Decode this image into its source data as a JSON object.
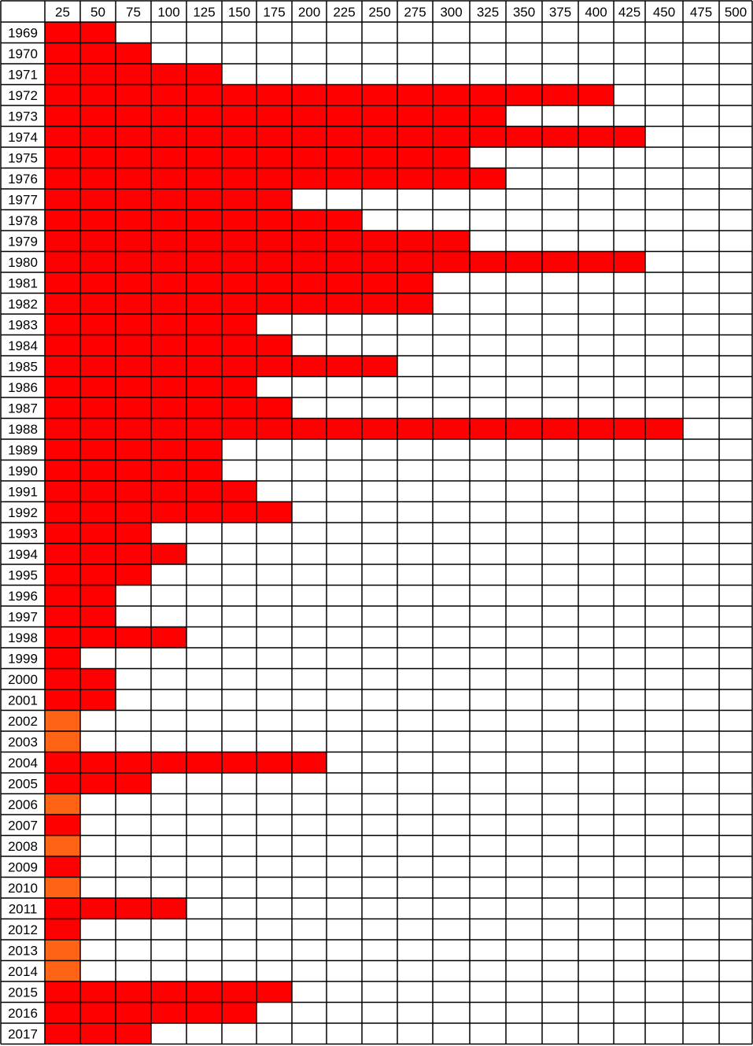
{
  "chart_data": {
    "type": "heatmap",
    "title": "",
    "xlabel": "",
    "ylabel": "",
    "columns": [
      "25",
      "50",
      "75",
      "100",
      "125",
      "150",
      "175",
      "200",
      "225",
      "250",
      "275",
      "300",
      "325",
      "350",
      "375",
      "400",
      "425",
      "450",
      "475",
      "500"
    ],
    "rows": [
      {
        "year": "1969",
        "filled": 2,
        "first_cell": "red"
      },
      {
        "year": "1970",
        "filled": 3,
        "first_cell": "red"
      },
      {
        "year": "1971",
        "filled": 5,
        "first_cell": "red"
      },
      {
        "year": "1972",
        "filled": 16,
        "first_cell": "red"
      },
      {
        "year": "1973",
        "filled": 13,
        "first_cell": "red"
      },
      {
        "year": "1974",
        "filled": 17,
        "first_cell": "red"
      },
      {
        "year": "1975",
        "filled": 12,
        "first_cell": "red"
      },
      {
        "year": "1976",
        "filled": 13,
        "first_cell": "red"
      },
      {
        "year": "1977",
        "filled": 7,
        "first_cell": "red"
      },
      {
        "year": "1978",
        "filled": 9,
        "first_cell": "red"
      },
      {
        "year": "1979",
        "filled": 12,
        "first_cell": "red"
      },
      {
        "year": "1980",
        "filled": 17,
        "first_cell": "red"
      },
      {
        "year": "1981",
        "filled": 11,
        "first_cell": "red"
      },
      {
        "year": "1982",
        "filled": 11,
        "first_cell": "red"
      },
      {
        "year": "1983",
        "filled": 6,
        "first_cell": "red"
      },
      {
        "year": "1984",
        "filled": 7,
        "first_cell": "red"
      },
      {
        "year": "1985",
        "filled": 10,
        "first_cell": "red"
      },
      {
        "year": "1986",
        "filled": 6,
        "first_cell": "red"
      },
      {
        "year": "1987",
        "filled": 7,
        "first_cell": "red"
      },
      {
        "year": "1988",
        "filled": 18,
        "first_cell": "red"
      },
      {
        "year": "1989",
        "filled": 5,
        "first_cell": "red"
      },
      {
        "year": "1990",
        "filled": 5,
        "first_cell": "red"
      },
      {
        "year": "1991",
        "filled": 6,
        "first_cell": "red"
      },
      {
        "year": "1992",
        "filled": 7,
        "first_cell": "red"
      },
      {
        "year": "1993",
        "filled": 3,
        "first_cell": "red"
      },
      {
        "year": "1994",
        "filled": 4,
        "first_cell": "red"
      },
      {
        "year": "1995",
        "filled": 3,
        "first_cell": "red"
      },
      {
        "year": "1996",
        "filled": 2,
        "first_cell": "red"
      },
      {
        "year": "1997",
        "filled": 2,
        "first_cell": "red"
      },
      {
        "year": "1998",
        "filled": 4,
        "first_cell": "red"
      },
      {
        "year": "1999",
        "filled": 1,
        "first_cell": "red"
      },
      {
        "year": "2000",
        "filled": 2,
        "first_cell": "red"
      },
      {
        "year": "2001",
        "filled": 2,
        "first_cell": "red"
      },
      {
        "year": "2002",
        "filled": 1,
        "first_cell": "orange"
      },
      {
        "year": "2003",
        "filled": 1,
        "first_cell": "orange"
      },
      {
        "year": "2004",
        "filled": 8,
        "first_cell": "red"
      },
      {
        "year": "2005",
        "filled": 3,
        "first_cell": "red"
      },
      {
        "year": "2006",
        "filled": 1,
        "first_cell": "orange"
      },
      {
        "year": "2007",
        "filled": 1,
        "first_cell": "red"
      },
      {
        "year": "2008",
        "filled": 1,
        "first_cell": "orange"
      },
      {
        "year": "2009",
        "filled": 1,
        "first_cell": "red"
      },
      {
        "year": "2010",
        "filled": 1,
        "first_cell": "orange"
      },
      {
        "year": "2011",
        "filled": 4,
        "first_cell": "red"
      },
      {
        "year": "2012",
        "filled": 1,
        "first_cell": "red"
      },
      {
        "year": "2013",
        "filled": 1,
        "first_cell": "orange"
      },
      {
        "year": "2014",
        "filled": 1,
        "first_cell": "orange"
      },
      {
        "year": "2015",
        "filled": 7,
        "first_cell": "red"
      },
      {
        "year": "2016",
        "filled": 6,
        "first_cell": "red"
      },
      {
        "year": "2017",
        "filled": 3,
        "first_cell": "red"
      }
    ],
    "colors": {
      "red": "#ff0000",
      "orange": "#ff6315",
      "empty": "#ffffff",
      "grid": "#000000"
    }
  }
}
